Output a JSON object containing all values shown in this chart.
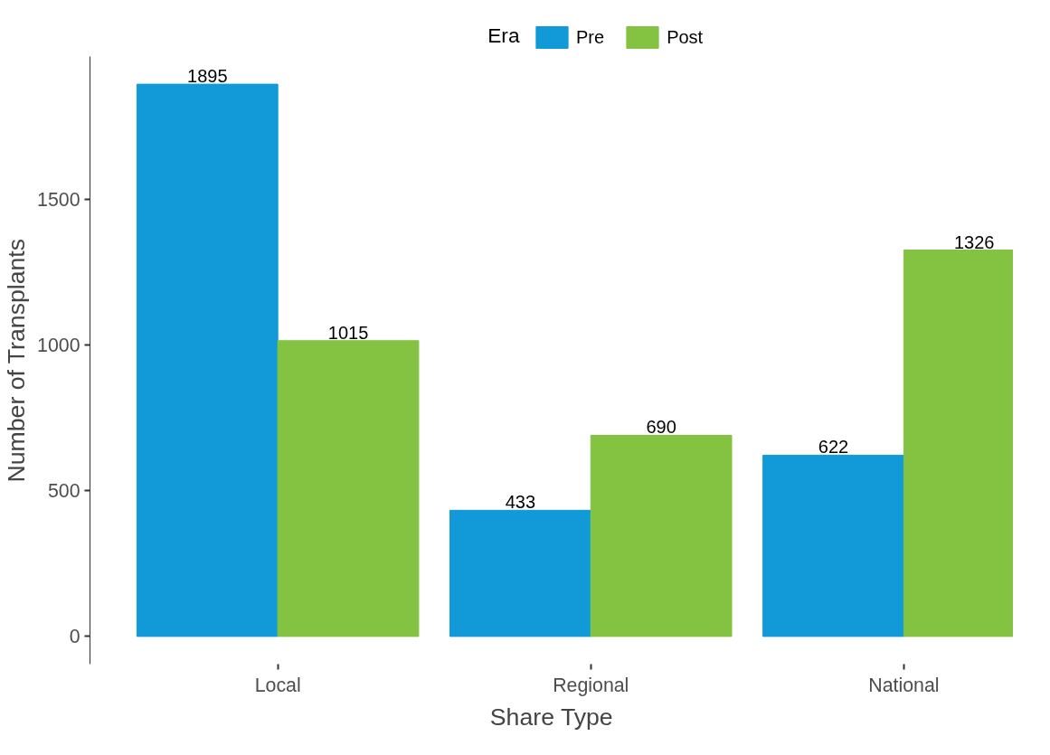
{
  "chart_data": {
    "type": "bar",
    "xlabel": "Share Type",
    "ylabel": "Number of Transplants",
    "legend_title": "Era",
    "categories": [
      "Local",
      "Regional",
      "National"
    ],
    "series": [
      {
        "name": "Pre",
        "color": "#119ad7",
        "values": [
          1895,
          433,
          622
        ]
      },
      {
        "name": "Post",
        "color": "#84c341",
        "values": [
          1015,
          690,
          1326
        ]
      }
    ],
    "ylim": [
      -95,
      1990
    ],
    "yticks": [
      0,
      500,
      1000,
      1500
    ],
    "grid": false,
    "legend": "top",
    "data_labels": true
  }
}
